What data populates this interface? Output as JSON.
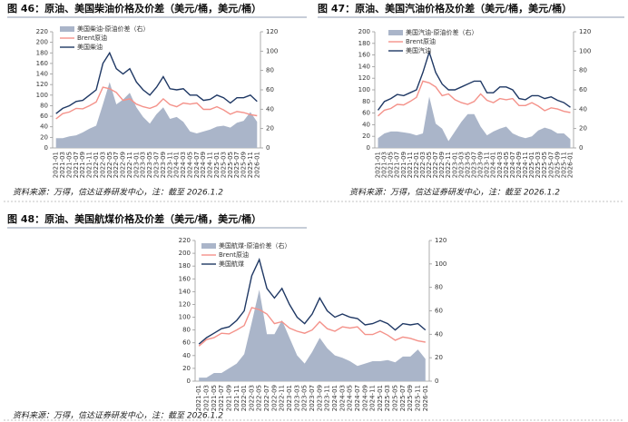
{
  "chart_data": [
    {
      "type": "line",
      "title": "图 46：原油、美国柴油价格及价差（美元/桶，美元/桶）",
      "source": "资料来源：万得，信达证券研发中心，注：截至 2026.1.2",
      "categories": [
        "2021-01",
        "2021-03",
        "2021-05",
        "2021-07",
        "2021-09",
        "2021-11",
        "2022-01",
        "2022-03",
        "2022-05",
        "2022-07",
        "2022-09",
        "2022-11",
        "2023-01",
        "2023-03",
        "2023-05",
        "2023-07",
        "2023-09",
        "2023-11",
        "2024-01",
        "2024-03",
        "2024-05",
        "2024-07",
        "2024-09",
        "2024-11",
        "2025-01",
        "2025-03",
        "2025-05",
        "2025-07",
        "2025-09",
        "2025-11",
        "2026-01"
      ],
      "ylim": [
        0,
        220
      ],
      "yticks": [
        0,
        20,
        40,
        60,
        80,
        100,
        120,
        140,
        160,
        180,
        200,
        220
      ],
      "y2lim": [
        0,
        120
      ],
      "y2ticks": [
        0,
        20,
        40,
        60,
        80,
        100,
        120
      ],
      "series": [
        {
          "name": "美国柴油-原油价差（右）",
          "type": "area",
          "axis": "y2",
          "color": "#aab5c9",
          "values": [
            10,
            10,
            12,
            13,
            16,
            20,
            23,
            45,
            68,
            45,
            50,
            57,
            42,
            32,
            25,
            35,
            42,
            30,
            32,
            27,
            17,
            15,
            17,
            19,
            22,
            23,
            21,
            26,
            28,
            37,
            27
          ]
        },
        {
          "name": "Brent原油",
          "color": "#f4928a",
          "values": [
            55,
            65,
            68,
            75,
            74,
            80,
            87,
            115,
            112,
            105,
            90,
            93,
            83,
            78,
            75,
            80,
            93,
            82,
            78,
            85,
            83,
            85,
            73,
            73,
            78,
            72,
            64,
            69,
            67,
            63,
            61
          ]
        },
        {
          "name": "美国柴油",
          "color": "#1f3864",
          "values": [
            65,
            75,
            80,
            88,
            90,
            100,
            110,
            160,
            180,
            150,
            140,
            150,
            125,
            110,
            100,
            115,
            135,
            112,
            110,
            112,
            100,
            100,
            90,
            92,
            100,
            95,
            85,
            95,
            95,
            100,
            88
          ]
        }
      ]
    },
    {
      "type": "line",
      "title": "图 47：原油、美国汽油价格及价差（美元/桶，美元/桶）",
      "source": "资料来源：万得，信达证券研发中心，注：截至 2026.1.2",
      "categories": [
        "2021-01",
        "2021-03",
        "2021-05",
        "2021-07",
        "2021-09",
        "2021-11",
        "2022-01",
        "2022-03",
        "2022-05",
        "2022-07",
        "2022-09",
        "2022-11",
        "2023-01",
        "2023-03",
        "2023-05",
        "2023-07",
        "2023-09",
        "2023-11",
        "2024-01",
        "2024-03",
        "2024-05",
        "2024-07",
        "2024-09",
        "2024-11",
        "2025-01",
        "2025-03",
        "2025-05",
        "2025-07",
        "2025-09",
        "2025-11",
        "2026-01"
      ],
      "ylim": [
        0,
        200
      ],
      "yticks": [
        0,
        20,
        40,
        60,
        80,
        100,
        120,
        140,
        160,
        180,
        200
      ],
      "y2lim": [
        0,
        120
      ],
      "y2ticks": [
        0,
        20,
        40,
        60,
        80,
        100,
        120
      ],
      "series": [
        {
          "name": "美国汽油-原油价差（右）",
          "type": "area",
          "axis": "y2",
          "color": "#aab5c9",
          "values": [
            10,
            15,
            17,
            17,
            16,
            15,
            13,
            15,
            53,
            25,
            20,
            7,
            17,
            27,
            35,
            35,
            22,
            13,
            17,
            20,
            22,
            15,
            12,
            10,
            12,
            18,
            21,
            19,
            15,
            15,
            9
          ]
        },
        {
          "name": "Brent原油",
          "color": "#f4928a",
          "values": [
            55,
            65,
            68,
            75,
            74,
            80,
            87,
            115,
            112,
            105,
            90,
            93,
            83,
            78,
            75,
            80,
            93,
            82,
            78,
            85,
            83,
            85,
            73,
            73,
            78,
            72,
            64,
            69,
            67,
            63,
            61
          ]
        },
        {
          "name": "美国汽油",
          "color": "#1f3864",
          "values": [
            65,
            80,
            85,
            92,
            90,
            95,
            100,
            130,
            165,
            130,
            110,
            100,
            100,
            105,
            110,
            115,
            115,
            95,
            95,
            105,
            105,
            100,
            85,
            83,
            90,
            90,
            85,
            88,
            82,
            78,
            70
          ]
        }
      ]
    },
    {
      "type": "line",
      "title": "图 48：原油、美国航煤价格及价差（美元/桶，美元/桶）",
      "source": "资料来源：万得，信达证券研发中心，注：截至 2026.1.2",
      "categories": [
        "2021-01",
        "2021-03",
        "2021-05",
        "2021-07",
        "2021-09",
        "2021-11",
        "2022-01",
        "2022-03",
        "2022-05",
        "2022-07",
        "2022-09",
        "2022-11",
        "2023-01",
        "2023-03",
        "2023-05",
        "2023-07",
        "2023-09",
        "2023-11",
        "2024-01",
        "2024-03",
        "2024-05",
        "2024-07",
        "2024-09",
        "2024-11",
        "2025-01",
        "2025-03",
        "2025-05",
        "2025-07",
        "2025-09",
        "2025-11",
        "2026-01"
      ],
      "ylim": [
        0,
        220
      ],
      "yticks": [
        0,
        20,
        40,
        60,
        80,
        100,
        120,
        140,
        160,
        180,
        200,
        220
      ],
      "y2lim": [
        0,
        120
      ],
      "y2ticks": [
        0,
        20,
        40,
        60,
        80,
        100,
        120
      ],
      "series": [
        {
          "name": "美国航煤-原油价差（右）",
          "type": "area",
          "axis": "y2",
          "color": "#aab5c9",
          "values": [
            3,
            3,
            7,
            7,
            11,
            15,
            23,
            50,
            78,
            40,
            40,
            52,
            37,
            22,
            15,
            25,
            37,
            28,
            22,
            20,
            17,
            13,
            15,
            17,
            17,
            18,
            16,
            21,
            21,
            27,
            19
          ]
        },
        {
          "name": "Brent原油",
          "color": "#f4928a",
          "values": [
            55,
            65,
            68,
            75,
            74,
            80,
            87,
            115,
            112,
            105,
            90,
            93,
            83,
            78,
            75,
            80,
            93,
            82,
            78,
            85,
            83,
            85,
            73,
            73,
            78,
            72,
            64,
            69,
            67,
            63,
            61
          ]
        },
        {
          "name": "美国航煤",
          "color": "#1f3864",
          "values": [
            58,
            68,
            75,
            82,
            85,
            95,
            110,
            165,
            190,
            145,
            130,
            145,
            120,
            100,
            90,
            105,
            130,
            110,
            100,
            105,
            100,
            98,
            88,
            90,
            95,
            90,
            80,
            90,
            88,
            90,
            80
          ]
        }
      ]
    }
  ]
}
